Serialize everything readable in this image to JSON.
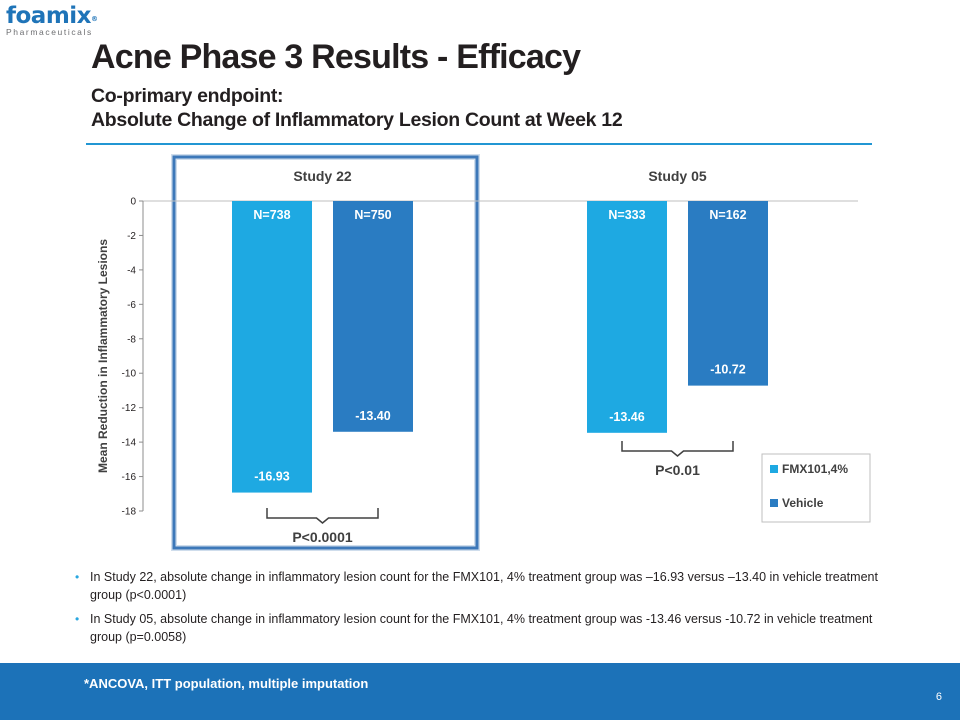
{
  "logo": {
    "name": "foamix",
    "reg": "®",
    "sub": "Pharmaceuticals"
  },
  "title": "Acne Phase 3 Results - Efficacy",
  "subtitle_line1": "Co-primary endpoint:",
  "subtitle_line2": "Absolute Change of Inflammatory Lesion Count at Week 12",
  "bullets": [
    "In Study 22, absolute change in inflammatory lesion count for the FMX101, 4% treatment group was –16.93 versus –13.40 in vehicle treatment group (p<0.0001)",
    "In Study 05, absolute change in inflammatory lesion count for the FMX101, 4% treatment group was -13.46 versus -10.72 in vehicle treatment group (p=0.0058)"
  ],
  "footnote": "*ANCOVA, ITT population, multiple imputation",
  "page_number": "6",
  "colors": {
    "fmx": "#1ea9e2",
    "vehicle": "#2a7cc2",
    "highlight_border": "#3d78b9",
    "accent": "#2196d3",
    "footer": "#1c72b8"
  },
  "chart_data": {
    "type": "bar",
    "ylabel": "Mean Reduction in Inflammatory Lesions",
    "ylim": [
      -18,
      0
    ],
    "yticks": [
      0,
      -2,
      -4,
      -6,
      -8,
      -10,
      -12,
      -14,
      -16,
      -18
    ],
    "series_names": [
      "FMX101,4%",
      "Vehicle"
    ],
    "groups": [
      {
        "name": "Study 22",
        "highlighted": true,
        "bars": [
          {
            "series": "FMX101,4%",
            "value": -16.93,
            "label": "-16.93",
            "n_label": "N=738"
          },
          {
            "series": "Vehicle",
            "value": -13.4,
            "label": "-13.40",
            "n_label": "N=750"
          }
        ],
        "p_value": "P<0.0001"
      },
      {
        "name": "Study 05",
        "highlighted": false,
        "bars": [
          {
            "series": "FMX101,4%",
            "value": -13.46,
            "label": "-13.46",
            "n_label": "N=333"
          },
          {
            "series": "Vehicle",
            "value": -10.72,
            "label": "-10.72",
            "n_label": "N=162"
          }
        ],
        "p_value": "P<0.01"
      }
    ],
    "legend_position": "bottom-right"
  }
}
